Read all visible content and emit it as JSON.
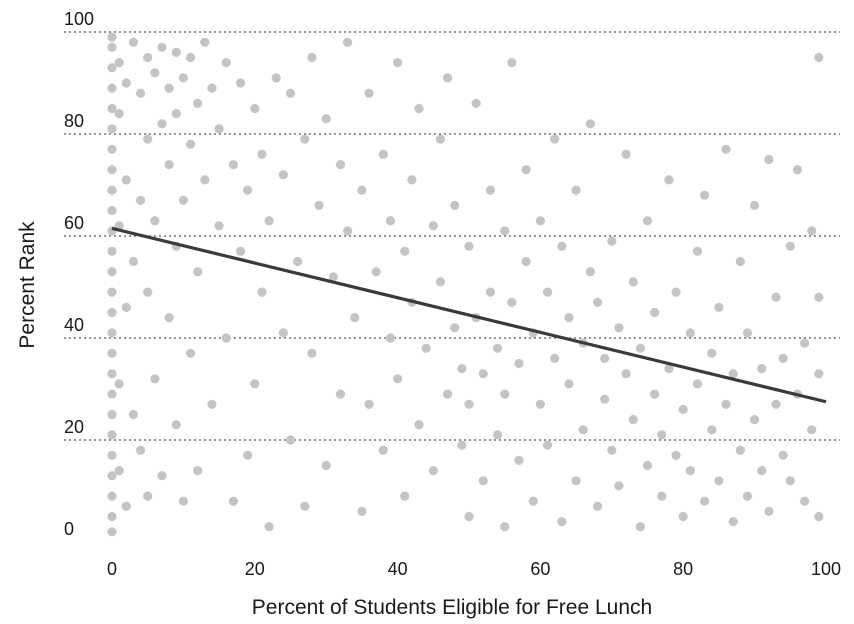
{
  "chart_data": {
    "type": "scatter",
    "title": "",
    "xlabel": "Percent of Students Eligible for Free Lunch",
    "ylabel": "Percent Rank",
    "xlim": [
      0,
      100
    ],
    "ylim": [
      0,
      100
    ],
    "xticks": [
      "0",
      "20",
      "40",
      "60",
      "80",
      "100"
    ],
    "yticks": [
      "0",
      "20",
      "40",
      "60",
      "80",
      "100"
    ],
    "grid": "horizontal dotted",
    "point_color": "#c4c4c4",
    "trend_color": "#3a3a3a",
    "trendline": {
      "x": [
        0,
        100
      ],
      "y": [
        61.5,
        27.5
      ]
    },
    "approx_point_count": 1500,
    "points": [
      [
        0,
        2
      ],
      [
        0,
        5
      ],
      [
        0,
        9
      ],
      [
        0,
        13
      ],
      [
        0,
        17
      ],
      [
        0,
        21
      ],
      [
        0,
        25
      ],
      [
        0,
        29
      ],
      [
        0,
        33
      ],
      [
        0,
        37
      ],
      [
        0,
        41
      ],
      [
        0,
        45
      ],
      [
        0,
        49
      ],
      [
        0,
        53
      ],
      [
        0,
        57
      ],
      [
        0,
        61
      ],
      [
        0,
        65
      ],
      [
        0,
        69
      ],
      [
        0,
        73
      ],
      [
        0,
        77
      ],
      [
        0,
        81
      ],
      [
        0,
        85
      ],
      [
        0,
        89
      ],
      [
        0,
        93
      ],
      [
        0,
        97
      ],
      [
        0,
        99
      ],
      [
        1,
        14
      ],
      [
        1,
        31
      ],
      [
        1,
        62
      ],
      [
        1,
        84
      ],
      [
        1,
        94
      ],
      [
        2,
        7
      ],
      [
        2,
        46
      ],
      [
        2,
        71
      ],
      [
        2,
        90
      ],
      [
        3,
        25
      ],
      [
        3,
        55
      ],
      [
        3,
        98
      ],
      [
        4,
        18
      ],
      [
        4,
        67
      ],
      [
        4,
        88
      ],
      [
        5,
        9
      ],
      [
        5,
        49
      ],
      [
        5,
        79
      ],
      [
        5,
        95
      ],
      [
        6,
        32
      ],
      [
        6,
        63
      ],
      [
        6,
        92
      ],
      [
        7,
        13
      ],
      [
        7,
        82
      ],
      [
        7,
        97
      ],
      [
        8,
        44
      ],
      [
        8,
        74
      ],
      [
        8,
        89
      ],
      [
        9,
        23
      ],
      [
        9,
        58
      ],
      [
        9,
        84
      ],
      [
        9,
        96
      ],
      [
        10,
        8
      ],
      [
        10,
        67
      ],
      [
        10,
        91
      ],
      [
        11,
        37
      ],
      [
        11,
        78
      ],
      [
        11,
        95
      ],
      [
        12,
        14
      ],
      [
        12,
        53
      ],
      [
        12,
        86
      ],
      [
        13,
        71
      ],
      [
        13,
        98
      ],
      [
        14,
        27
      ],
      [
        14,
        89
      ],
      [
        15,
        62
      ],
      [
        15,
        81
      ],
      [
        16,
        40
      ],
      [
        16,
        94
      ],
      [
        17,
        8
      ],
      [
        17,
        74
      ],
      [
        18,
        57
      ],
      [
        18,
        90
      ],
      [
        19,
        17
      ],
      [
        19,
        69
      ],
      [
        20,
        31
      ],
      [
        20,
        85
      ],
      [
        21,
        49
      ],
      [
        21,
        76
      ],
      [
        22,
        3
      ],
      [
        22,
        63
      ],
      [
        23,
        91
      ],
      [
        24,
        41
      ],
      [
        24,
        72
      ],
      [
        25,
        20
      ],
      [
        25,
        88
      ],
      [
        26,
        55
      ],
      [
        27,
        7
      ],
      [
        27,
        79
      ],
      [
        28,
        37
      ],
      [
        28,
        95
      ],
      [
        29,
        66
      ],
      [
        30,
        15
      ],
      [
        30,
        83
      ],
      [
        31,
        52
      ],
      [
        32,
        29
      ],
      [
        32,
        74
      ],
      [
        33,
        61
      ],
      [
        33,
        98
      ],
      [
        34,
        44
      ],
      [
        35,
        6
      ],
      [
        35,
        69
      ],
      [
        36,
        27
      ],
      [
        36,
        88
      ],
      [
        37,
        53
      ],
      [
        38,
        18
      ],
      [
        38,
        76
      ],
      [
        39,
        40
      ],
      [
        39,
        63
      ],
      [
        40,
        32
      ],
      [
        40,
        94
      ],
      [
        41,
        9
      ],
      [
        41,
        57
      ],
      [
        42,
        47
      ],
      [
        42,
        71
      ],
      [
        43,
        23
      ],
      [
        43,
        85
      ],
      [
        44,
        38
      ],
      [
        45,
        14
      ],
      [
        45,
        62
      ],
      [
        46,
        51
      ],
      [
        46,
        79
      ],
      [
        47,
        29
      ],
      [
        47,
        91
      ],
      [
        48,
        42
      ],
      [
        48,
        66
      ],
      [
        49,
        19
      ],
      [
        49,
        34
      ],
      [
        50,
        5
      ],
      [
        50,
        27
      ],
      [
        50,
        58
      ],
      [
        51,
        44
      ],
      [
        51,
        86
      ],
      [
        52,
        12
      ],
      [
        52,
        33
      ],
      [
        53,
        69
      ],
      [
        53,
        49
      ],
      [
        54,
        21
      ],
      [
        54,
        38
      ],
      [
        55,
        3
      ],
      [
        55,
        61
      ],
      [
        55,
        29
      ],
      [
        56,
        47
      ],
      [
        56,
        94
      ],
      [
        57,
        16
      ],
      [
        57,
        35
      ],
      [
        58,
        55
      ],
      [
        58,
        73
      ],
      [
        59,
        8
      ],
      [
        59,
        41
      ],
      [
        60,
        27
      ],
      [
        60,
        63
      ],
      [
        61,
        49
      ],
      [
        61,
        19
      ],
      [
        62,
        36
      ],
      [
        62,
        79
      ],
      [
        63,
        4
      ],
      [
        63,
        58
      ],
      [
        64,
        31
      ],
      [
        64,
        44
      ],
      [
        65,
        12
      ],
      [
        65,
        69
      ],
      [
        66,
        39
      ],
      [
        66,
        22
      ],
      [
        67,
        53
      ],
      [
        67,
        82
      ],
      [
        68,
        7
      ],
      [
        68,
        47
      ],
      [
        69,
        28
      ],
      [
        69,
        36
      ],
      [
        70,
        18
      ],
      [
        70,
        59
      ],
      [
        71,
        42
      ],
      [
        71,
        11
      ],
      [
        72,
        33
      ],
      [
        72,
        76
      ],
      [
        73,
        24
      ],
      [
        73,
        51
      ],
      [
        74,
        3
      ],
      [
        74,
        38
      ],
      [
        75,
        15
      ],
      [
        75,
        63
      ],
      [
        76,
        29
      ],
      [
        76,
        45
      ],
      [
        77,
        9
      ],
      [
        77,
        21
      ],
      [
        78,
        34
      ],
      [
        78,
        71
      ],
      [
        79,
        17
      ],
      [
        79,
        49
      ],
      [
        80,
        5
      ],
      [
        80,
        26
      ],
      [
        81,
        41
      ],
      [
        81,
        14
      ],
      [
        82,
        57
      ],
      [
        82,
        31
      ],
      [
        83,
        8
      ],
      [
        83,
        68
      ],
      [
        84,
        22
      ],
      [
        84,
        37
      ],
      [
        85,
        12
      ],
      [
        85,
        46
      ],
      [
        86,
        77
      ],
      [
        86,
        27
      ],
      [
        87,
        4
      ],
      [
        87,
        33
      ],
      [
        88,
        18
      ],
      [
        88,
        55
      ],
      [
        89,
        9
      ],
      [
        89,
        41
      ],
      [
        90,
        24
      ],
      [
        90,
        66
      ],
      [
        91,
        14
      ],
      [
        91,
        34
      ],
      [
        92,
        75
      ],
      [
        92,
        6
      ],
      [
        93,
        27
      ],
      [
        93,
        48
      ],
      [
        94,
        17
      ],
      [
        94,
        36
      ],
      [
        95,
        58
      ],
      [
        95,
        12
      ],
      [
        96,
        29
      ],
      [
        96,
        73
      ],
      [
        97,
        8
      ],
      [
        97,
        39
      ],
      [
        98,
        22
      ],
      [
        98,
        61
      ],
      [
        99,
        5
      ],
      [
        99,
        33
      ],
      [
        99,
        48
      ],
      [
        99,
        95
      ]
    ]
  }
}
